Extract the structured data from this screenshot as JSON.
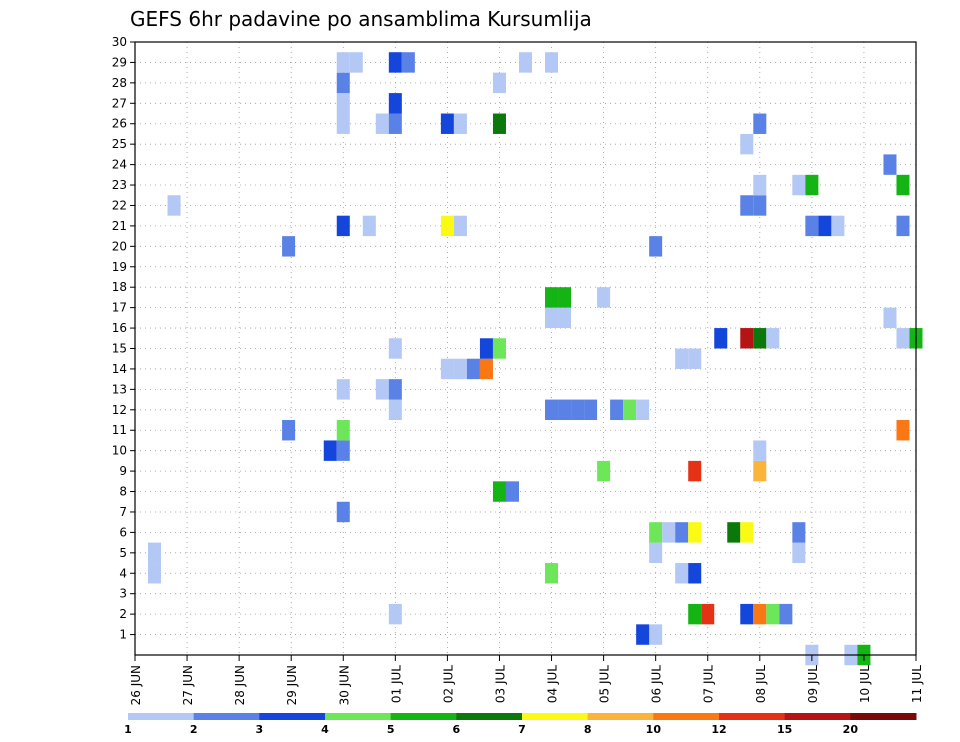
{
  "chart_data": {
    "type": "heatmap",
    "title": "GEFS 6hr padavine po ansamblima Kursumlija",
    "xlabel": "",
    "ylabel": "",
    "grid": true,
    "x_range": [
      0,
      60
    ],
    "y_range": [
      0,
      30
    ],
    "x_ticks": [
      {
        "x": 0,
        "label": "26 JUN"
      },
      {
        "x": 4,
        "label": "27 JUN"
      },
      {
        "x": 8,
        "label": "28 JUN"
      },
      {
        "x": 12,
        "label": "29 JUN"
      },
      {
        "x": 16,
        "label": "30 JUN"
      },
      {
        "x": 20,
        "label": "01 JUL"
      },
      {
        "x": 24,
        "label": "02 JUL"
      },
      {
        "x": 28,
        "label": "03 JUL"
      },
      {
        "x": 32,
        "label": "04 JUL"
      },
      {
        "x": 36,
        "label": "05 JUL"
      },
      {
        "x": 40,
        "label": "06 JUL"
      },
      {
        "x": 44,
        "label": "07 JUL"
      },
      {
        "x": 48,
        "label": "08 JUL"
      },
      {
        "x": 52,
        "label": "09 JUL"
      },
      {
        "x": 56,
        "label": "10 JUL"
      },
      {
        "x": 60,
        "label": "11 JUL"
      }
    ],
    "y_ticks": [
      1,
      2,
      3,
      4,
      5,
      6,
      7,
      8,
      9,
      10,
      11,
      12,
      13,
      14,
      15,
      16,
      17,
      18,
      19,
      20,
      21,
      22,
      23,
      24,
      25,
      26,
      27,
      28,
      29,
      30
    ],
    "legend": {
      "position": "bottom",
      "colors": [
        "#b4c8f5",
        "#5a82e6",
        "#1446dc",
        "#6ee65a",
        "#14b414",
        "#0a780a",
        "#fafa14",
        "#fab43c",
        "#fa7814",
        "#e63214",
        "#b41414",
        "#7a0a0a"
      ],
      "labels": [
        "1",
        "2",
        "3",
        "4",
        "5",
        "6",
        "7",
        "8",
        "10",
        "12",
        "15",
        "20"
      ]
    },
    "cells": [
      {
        "x": 1.5,
        "y": 4,
        "v": 1
      },
      {
        "x": 1.5,
        "y": 5,
        "v": 1
      },
      {
        "x": 3,
        "y": 22,
        "v": 1
      },
      {
        "x": 11.8,
        "y": 11,
        "v": 2
      },
      {
        "x": 11.8,
        "y": 20,
        "v": 2
      },
      {
        "x": 15,
        "y": 10,
        "v": 3
      },
      {
        "x": 16,
        "y": 10,
        "v": 2
      },
      {
        "x": 16,
        "y": 11,
        "v": 4
      },
      {
        "x": 16,
        "y": 7,
        "v": 2
      },
      {
        "x": 16,
        "y": 13,
        "v": 1
      },
      {
        "x": 16,
        "y": 21,
        "v": 3
      },
      {
        "x": 16,
        "y": 26,
        "v": 1
      },
      {
        "x": 16,
        "y": 27,
        "v": 1
      },
      {
        "x": 16,
        "y": 28,
        "v": 2
      },
      {
        "x": 16,
        "y": 29,
        "v": 1
      },
      {
        "x": 17,
        "y": 29,
        "v": 1
      },
      {
        "x": 18,
        "y": 21,
        "v": 1
      },
      {
        "x": 19,
        "y": 13,
        "v": 1
      },
      {
        "x": 19,
        "y": 26,
        "v": 1
      },
      {
        "x": 20,
        "y": 2,
        "v": 1
      },
      {
        "x": 20,
        "y": 12,
        "v": 1
      },
      {
        "x": 20,
        "y": 13,
        "v": 2
      },
      {
        "x": 20,
        "y": 15,
        "v": 1
      },
      {
        "x": 20,
        "y": 26,
        "v": 2
      },
      {
        "x": 20,
        "y": 27,
        "v": 3
      },
      {
        "x": 20,
        "y": 29,
        "v": 3
      },
      {
        "x": 21,
        "y": 29,
        "v": 2
      },
      {
        "x": 24,
        "y": 14,
        "v": 1
      },
      {
        "x": 24,
        "y": 21,
        "v": 7
      },
      {
        "x": 24,
        "y": 26,
        "v": 3
      },
      {
        "x": 25,
        "y": 14,
        "v": 1
      },
      {
        "x": 25,
        "y": 21,
        "v": 1
      },
      {
        "x": 25,
        "y": 26,
        "v": 1
      },
      {
        "x": 26,
        "y": 14,
        "v": 2
      },
      {
        "x": 27,
        "y": 14,
        "v": 10
      },
      {
        "x": 27,
        "y": 15,
        "v": 3
      },
      {
        "x": 28,
        "y": 15,
        "v": 4
      },
      {
        "x": 28,
        "y": 26,
        "v": 6
      },
      {
        "x": 28,
        "y": 28,
        "v": 1
      },
      {
        "x": 28,
        "y": 8,
        "v": 5
      },
      {
        "x": 29,
        "y": 8,
        "v": 2
      },
      {
        "x": 30,
        "y": 29,
        "v": 1
      },
      {
        "x": 32,
        "y": 4,
        "v": 4
      },
      {
        "x": 32,
        "y": 12,
        "v": 2
      },
      {
        "x": 32,
        "y": 16.5,
        "v": 1
      },
      {
        "x": 32,
        "y": 17.5,
        "v": 5
      },
      {
        "x": 32,
        "y": 29,
        "v": 1
      },
      {
        "x": 33,
        "y": 12,
        "v": 2
      },
      {
        "x": 33,
        "y": 16.5,
        "v": 1
      },
      {
        "x": 33,
        "y": 17.5,
        "v": 5
      },
      {
        "x": 34,
        "y": 12,
        "v": 2
      },
      {
        "x": 35,
        "y": 12,
        "v": 2
      },
      {
        "x": 36,
        "y": 9,
        "v": 4
      },
      {
        "x": 36,
        "y": 17.5,
        "v": 1
      },
      {
        "x": 37,
        "y": 12,
        "v": 2
      },
      {
        "x": 38,
        "y": 12,
        "v": 4
      },
      {
        "x": 39,
        "y": 12,
        "v": 1
      },
      {
        "x": 40,
        "y": 1,
        "v": 1
      },
      {
        "x": 39,
        "y": 1,
        "v": 3
      },
      {
        "x": 40,
        "y": 5,
        "v": 1
      },
      {
        "x": 40,
        "y": 6,
        "v": 4
      },
      {
        "x": 40,
        "y": 20,
        "v": 2
      },
      {
        "x": 41,
        "y": 6,
        "v": 1
      },
      {
        "x": 42,
        "y": 4,
        "v": 1
      },
      {
        "x": 42,
        "y": 6,
        "v": 2
      },
      {
        "x": 42,
        "y": 14.5,
        "v": 1
      },
      {
        "x": 43,
        "y": 2,
        "v": 5
      },
      {
        "x": 43,
        "y": 4,
        "v": 3
      },
      {
        "x": 43,
        "y": 6,
        "v": 7
      },
      {
        "x": 43,
        "y": 9,
        "v": 12
      },
      {
        "x": 43,
        "y": 14.5,
        "v": 1
      },
      {
        "x": 44,
        "y": 2,
        "v": 12
      },
      {
        "x": 45,
        "y": 15.5,
        "v": 3
      },
      {
        "x": 46,
        "y": 6,
        "v": 6
      },
      {
        "x": 47,
        "y": 2,
        "v": 3
      },
      {
        "x": 47,
        "y": 6,
        "v": 7
      },
      {
        "x": 47,
        "y": 15.5,
        "v": 15
      },
      {
        "x": 47,
        "y": 22,
        "v": 2
      },
      {
        "x": 47,
        "y": 25,
        "v": 1
      },
      {
        "x": 48,
        "y": 2,
        "v": 10
      },
      {
        "x": 48,
        "y": 9,
        "v": 8
      },
      {
        "x": 48,
        "y": 10,
        "v": 1
      },
      {
        "x": 48,
        "y": 15.5,
        "v": 6
      },
      {
        "x": 48,
        "y": 22,
        "v": 2
      },
      {
        "x": 48,
        "y": 23,
        "v": 1
      },
      {
        "x": 48,
        "y": 26,
        "v": 2
      },
      {
        "x": 49,
        "y": 2,
        "v": 4
      },
      {
        "x": 49,
        "y": 15.5,
        "v": 1
      },
      {
        "x": 50,
        "y": 2,
        "v": 2
      },
      {
        "x": 51,
        "y": 5,
        "v": 1
      },
      {
        "x": 51,
        "y": 6,
        "v": 2
      },
      {
        "x": 51,
        "y": 23,
        "v": 1
      },
      {
        "x": 52,
        "y": 0,
        "v": 1
      },
      {
        "x": 52,
        "y": 21,
        "v": 2
      },
      {
        "x": 52,
        "y": 23,
        "v": 5
      },
      {
        "x": 53,
        "y": 21,
        "v": 3
      },
      {
        "x": 54,
        "y": 21,
        "v": 1
      },
      {
        "x": 55,
        "y": 0,
        "v": 1
      },
      {
        "x": 56,
        "y": 0,
        "v": 5
      },
      {
        "x": 58,
        "y": 16.5,
        "v": 1
      },
      {
        "x": 58,
        "y": 24,
        "v": 2
      },
      {
        "x": 59,
        "y": 11,
        "v": 10
      },
      {
        "x": 59,
        "y": 15.5,
        "v": 1
      },
      {
        "x": 59,
        "y": 21,
        "v": 2
      },
      {
        "x": 59,
        "y": 23,
        "v": 5
      },
      {
        "x": 60,
        "y": 15.5,
        "v": 5
      }
    ]
  }
}
